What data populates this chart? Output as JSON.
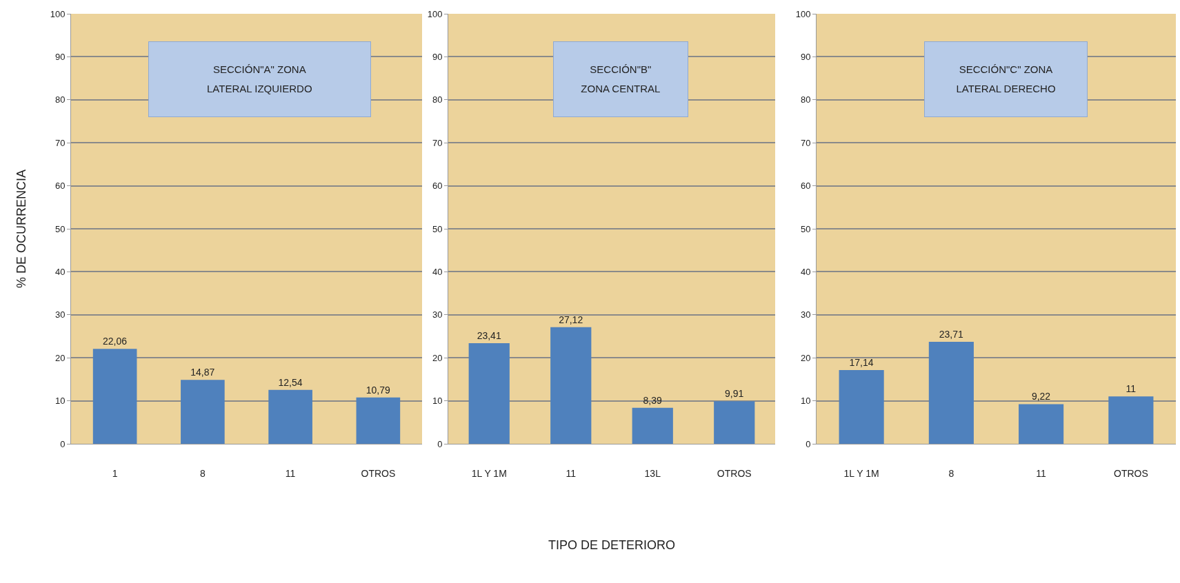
{
  "chart_data": [
    {
      "type": "bar",
      "title": "SECCIÓN\"A\" ZONA\nLATERAL IZQUIERDO",
      "ylabel": "% DE OCURRENCIA",
      "categories": [
        "1",
        "8",
        "11",
        "OTROS"
      ],
      "values": [
        22.06,
        14.87,
        12.54,
        10.79
      ],
      "value_labels": [
        "22,06",
        "14,87",
        "12,54",
        "10,79"
      ],
      "color": "#4f81bd",
      "ylim": [
        0,
        100
      ],
      "yticks": [
        0,
        10,
        20,
        30,
        40,
        50,
        60,
        70,
        80,
        90,
        100
      ],
      "grid": "y"
    },
    {
      "type": "bar",
      "title": "SECCIÓN\"B\"\nZONA CENTRAL",
      "xlabel": "TIPO DE DETERIORO",
      "categories": [
        "1L Y 1M",
        "11",
        "13L",
        "OTROS"
      ],
      "values": [
        23.41,
        27.12,
        8.39,
        9.91
      ],
      "value_labels": [
        "23,41",
        "27,12",
        "8,39",
        "9,91"
      ],
      "color": "#4f81bd",
      "ylim": [
        0,
        100
      ],
      "yticks": [
        0,
        10,
        20,
        30,
        40,
        50,
        60,
        70,
        80,
        90,
        100
      ],
      "grid": "y"
    },
    {
      "type": "bar",
      "title": "SECCIÓN\"C\" ZONA\nLATERAL DERECHO",
      "categories": [
        "1L Y 1M",
        "8",
        "11",
        "OTROS"
      ],
      "values": [
        17.14,
        23.71,
        9.22,
        11
      ],
      "value_labels": [
        "17,14",
        "23,71",
        "9,22",
        "11"
      ],
      "color": "#4f81bd",
      "ylim": [
        0,
        100
      ],
      "yticks": [
        0,
        10,
        20,
        30,
        40,
        50,
        60,
        70,
        80,
        90,
        100
      ],
      "grid": "y"
    }
  ]
}
